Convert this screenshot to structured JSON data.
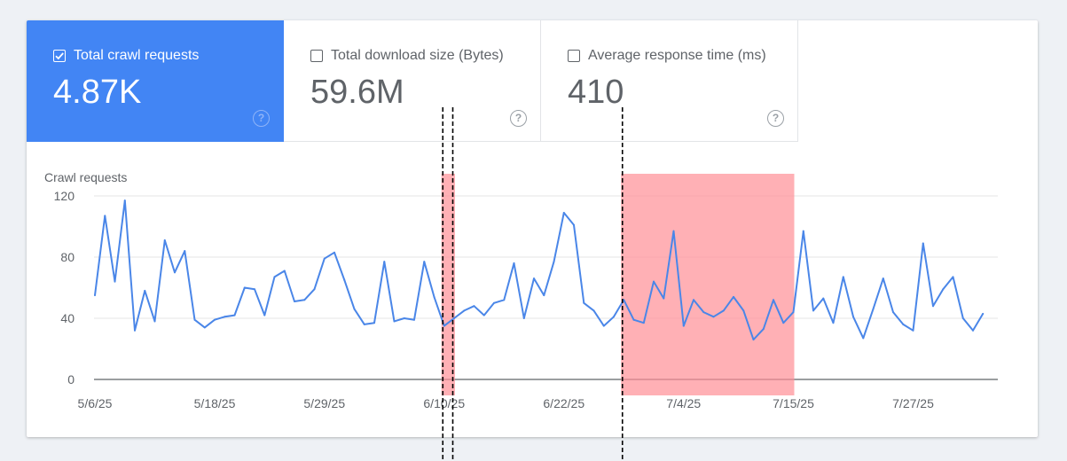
{
  "metrics": [
    {
      "label": "Total crawl requests",
      "value": "4.87K",
      "checked": true
    },
    {
      "label": "Total download size (Bytes)",
      "value": "59.6M",
      "checked": false
    },
    {
      "label": "Average response time (ms)",
      "value": "410",
      "checked": false
    }
  ],
  "help_glyph": "?",
  "colors": {
    "selected_tile": "#4285f4",
    "line": "#4a86e8",
    "highlight": "#ff8f95",
    "marker": "#000000"
  },
  "chart_data": {
    "type": "line",
    "ylabel": "Crawl requests",
    "ylim": [
      0,
      120
    ],
    "yticks": [
      0,
      40,
      80,
      120
    ],
    "start_date": "2025-05-06",
    "xticks": [
      {
        "date": "2025-05-06",
        "label": "5/6/25"
      },
      {
        "date": "2025-05-18",
        "label": "5/18/25"
      },
      {
        "date": "2025-05-29",
        "label": "5/29/25"
      },
      {
        "date": "2025-06-10",
        "label": "6/10/25"
      },
      {
        "date": "2025-06-22",
        "label": "6/22/25"
      },
      {
        "date": "2025-07-04",
        "label": "7/4/25"
      },
      {
        "date": "2025-07-15",
        "label": "7/15/25"
      },
      {
        "date": "2025-07-27",
        "label": "7/27/25"
      }
    ],
    "series": [
      {
        "values": [
          55,
          107,
          64,
          117,
          32,
          58,
          38,
          91,
          70,
          84,
          39,
          34,
          39,
          41,
          42,
          60,
          59,
          42,
          67,
          71,
          51,
          52,
          59,
          79,
          83,
          65,
          46,
          36,
          37,
          77,
          38,
          40,
          39,
          77,
          54,
          35,
          40,
          45,
          48,
          42,
          50,
          52,
          76,
          40,
          66,
          55,
          77,
          109,
          101,
          50,
          45,
          35,
          41,
          52,
          39,
          37,
          64,
          53,
          97,
          35,
          52,
          44,
          41,
          45,
          54,
          45,
          26,
          33,
          52,
          37,
          44,
          97,
          45,
          53,
          37,
          67,
          41,
          27,
          46,
          66,
          44,
          36,
          32,
          89,
          48,
          59,
          67,
          40,
          32,
          43
        ]
      }
    ],
    "highlights": [
      {
        "start": "2025-06-10",
        "end": "2025-06-11"
      },
      {
        "start": "2025-06-28",
        "end": "2025-07-15"
      }
    ],
    "markers": [
      "2025-06-10",
      "2025-06-11",
      "2025-06-28"
    ],
    "grid": true,
    "legend": "none"
  }
}
